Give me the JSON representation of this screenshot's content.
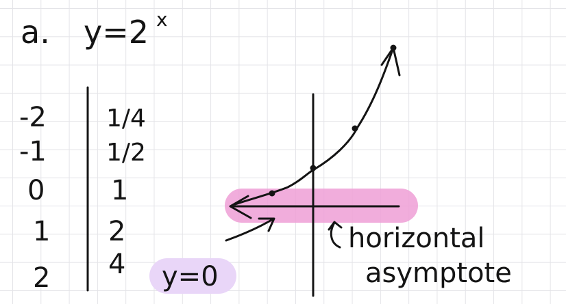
{
  "title": {
    "label": "a.",
    "equation_base": "y=2",
    "equation_exp": "x"
  },
  "table": {
    "x": [
      "-2",
      "-1",
      "0",
      "1",
      "2"
    ],
    "y": [
      "1/4",
      "1/2",
      "1",
      "2",
      "4"
    ]
  },
  "asymptote": {
    "equation": "y=0",
    "label_line1": "horizontal",
    "label_line2": "asymptote",
    "highlight_color": "#ef9fd6",
    "equation_highlight_color": "#e9d6f8"
  },
  "graph": {
    "function": "2^x",
    "plotted_points": [
      {
        "x": -1,
        "y": 0.5
      },
      {
        "x": 0,
        "y": 1
      },
      {
        "x": 1,
        "y": 2
      },
      {
        "x": 2,
        "y": 4
      }
    ]
  },
  "ink_color": "#141414"
}
